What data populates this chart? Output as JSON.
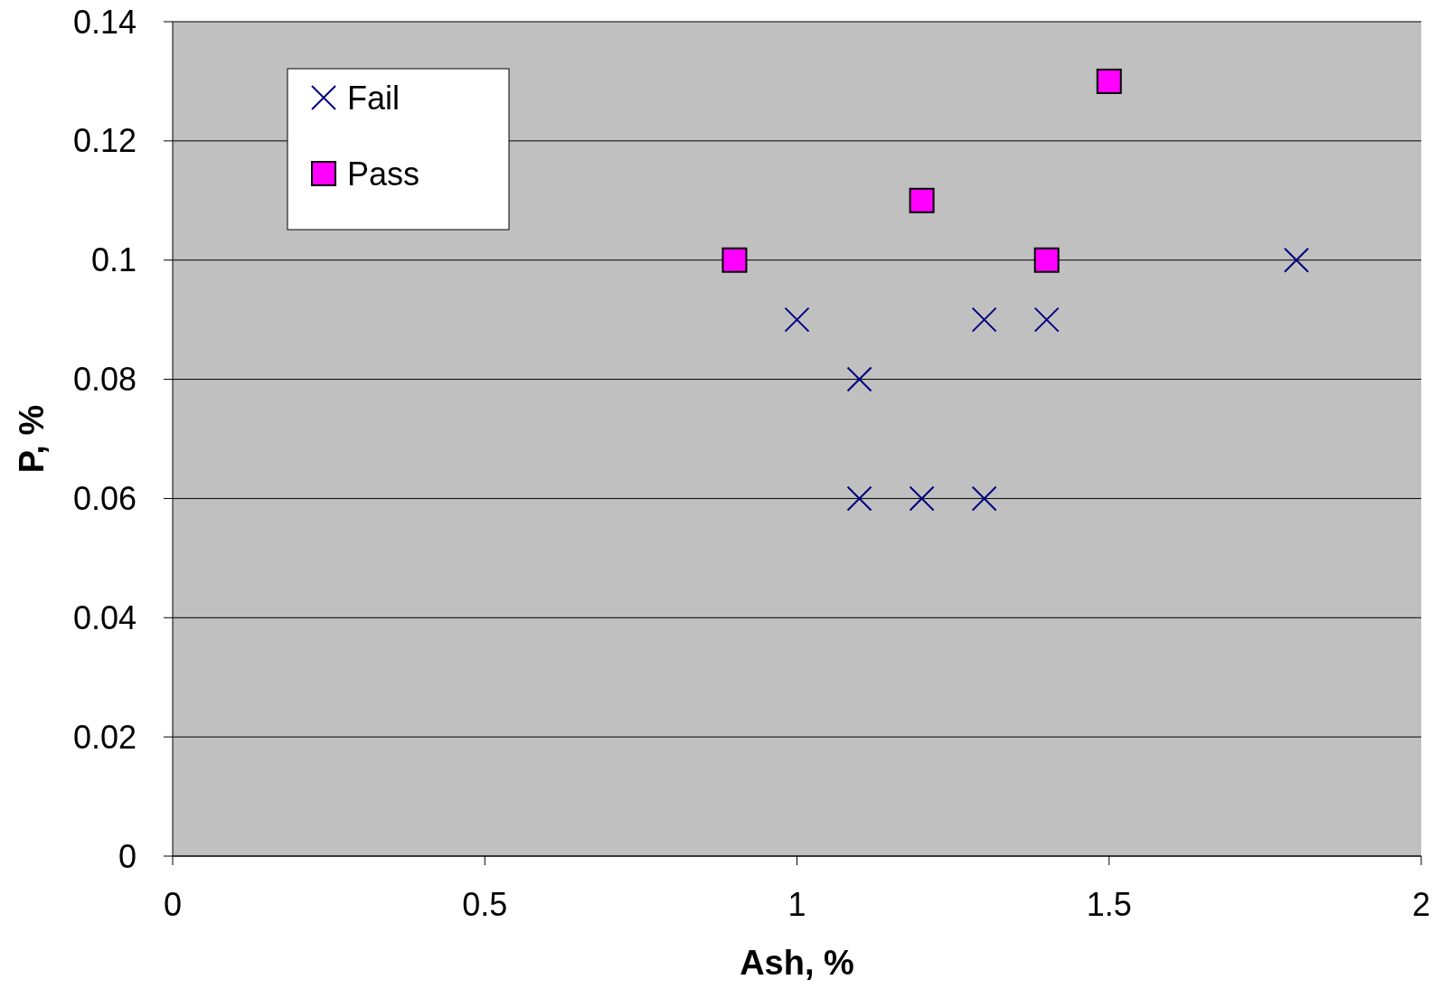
{
  "chart_data": {
    "type": "scatter",
    "xlabel": "Ash, %",
    "ylabel": "P, %",
    "xlim": [
      0,
      2
    ],
    "xticks": [
      0,
      0.5,
      1,
      1.5,
      2
    ],
    "ylim": [
      0,
      0.14
    ],
    "yticks": [
      0,
      0.02,
      0.04,
      0.06,
      0.08,
      0.1,
      0.12,
      0.14
    ],
    "grid": "y",
    "legend": "top left",
    "series": [
      {
        "name": "Fail",
        "color": "#000080",
        "marker": "cross",
        "x": [
          1.0,
          1.1,
          1.1,
          1.2,
          1.3,
          1.3,
          1.4,
          1.8
        ],
        "values": [
          0.09,
          0.08,
          0.06,
          0.06,
          0.06,
          0.09,
          0.09,
          0.1
        ]
      },
      {
        "name": "Pass",
        "color": "#ff00ff",
        "marker": "square",
        "x": [
          0.9,
          1.2,
          1.4,
          1.5
        ],
        "values": [
          0.1,
          0.11,
          0.1,
          0.13
        ]
      }
    ]
  }
}
